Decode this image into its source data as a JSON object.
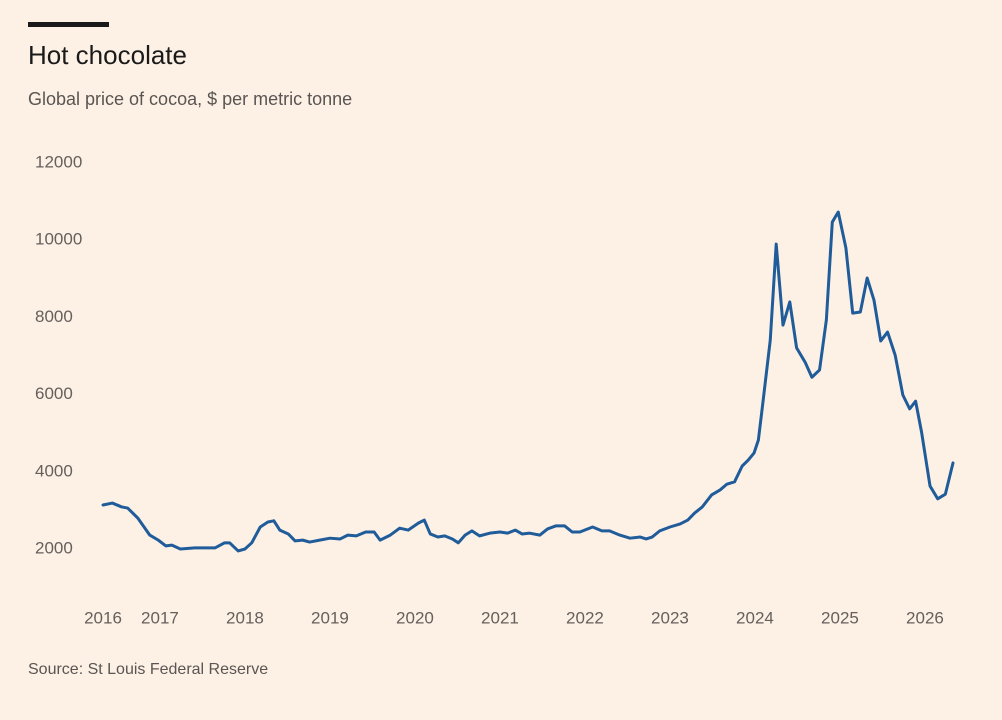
{
  "chart_data": {
    "type": "line",
    "title": "Hot chocolate",
    "subtitle": "Global price of cocoa, $ per metric tonne",
    "source": "Source: St Louis Federal Reserve",
    "color": "#1f5c99",
    "grid": false,
    "xlim": [
      2016.33,
      2026.33
    ],
    "ylim": [
      1000,
      12000
    ],
    "yticks": [
      2000,
      4000,
      6000,
      8000,
      10000,
      12000
    ],
    "xticks": [
      {
        "value": 2016.33,
        "label": "2016"
      },
      2017,
      2018,
      2019,
      2020,
      2021,
      2022,
      2023,
      2024,
      2025,
      2026
    ],
    "x": [
      2016.33,
      2016.44,
      2016.55,
      2016.62,
      2016.74,
      2016.88,
      2016.98,
      2017.07,
      2017.14,
      2017.24,
      2017.41,
      2017.65,
      2017.76,
      2017.82,
      2017.92,
      2018.0,
      2018.08,
      2018.18,
      2018.27,
      2018.34,
      2018.41,
      2018.51,
      2018.59,
      2018.68,
      2018.76,
      2018.88,
      2019.0,
      2019.12,
      2019.21,
      2019.31,
      2019.42,
      2019.52,
      2019.59,
      2019.71,
      2019.82,
      2019.92,
      2020.04,
      2020.11,
      2020.18,
      2020.27,
      2020.35,
      2020.44,
      2020.51,
      2020.59,
      2020.67,
      2020.76,
      2020.88,
      2021.0,
      2021.09,
      2021.18,
      2021.26,
      2021.35,
      2021.47,
      2021.56,
      2021.66,
      2021.76,
      2021.85,
      2021.94,
      2022.09,
      2022.2,
      2022.29,
      2022.41,
      2022.53,
      2022.65,
      2022.72,
      2022.79,
      2022.88,
      2023.0,
      2023.12,
      2023.21,
      2023.29,
      2023.38,
      2023.49,
      2023.59,
      2023.67,
      2023.76,
      2023.85,
      2023.92,
      2023.99,
      2024.04,
      2024.09,
      2024.18,
      2024.25,
      2024.33,
      2024.41,
      2024.49,
      2024.59,
      2024.67,
      2024.76,
      2024.84,
      2024.91,
      2024.98,
      2025.07,
      2025.15,
      2025.24,
      2025.32,
      2025.4,
      2025.48,
      2025.56,
      2025.65,
      2025.74,
      2025.82,
      2025.89,
      2025.96,
      2026.06,
      2026.15,
      2026.24,
      2026.33
    ],
    "values": [
      3140,
      3190,
      3090,
      3060,
      2800,
      2360,
      2230,
      2080,
      2100,
      2000,
      2030,
      2030,
      2160,
      2160,
      1950,
      2000,
      2160,
      2570,
      2700,
      2730,
      2490,
      2390,
      2210,
      2230,
      2180,
      2230,
      2280,
      2260,
      2360,
      2340,
      2440,
      2440,
      2230,
      2360,
      2540,
      2490,
      2670,
      2750,
      2390,
      2310,
      2340,
      2260,
      2160,
      2360,
      2470,
      2340,
      2410,
      2440,
      2410,
      2490,
      2390,
      2410,
      2360,
      2520,
      2600,
      2600,
      2440,
      2440,
      2570,
      2470,
      2470,
      2360,
      2280,
      2310,
      2260,
      2310,
      2470,
      2570,
      2650,
      2750,
      2930,
      3090,
      3400,
      3530,
      3680,
      3740,
      4150,
      4300,
      4490,
      4820,
      5730,
      7410,
      9900,
      7800,
      8400,
      7210,
      6840,
      6450,
      6640,
      7930,
      10470,
      10730,
      9800,
      8110,
      8140,
      9020,
      8450,
      7390,
      7620,
      7020,
      5990,
      5630,
      5830,
      5030,
      3630,
      3300,
      3420,
      4230
    ]
  }
}
